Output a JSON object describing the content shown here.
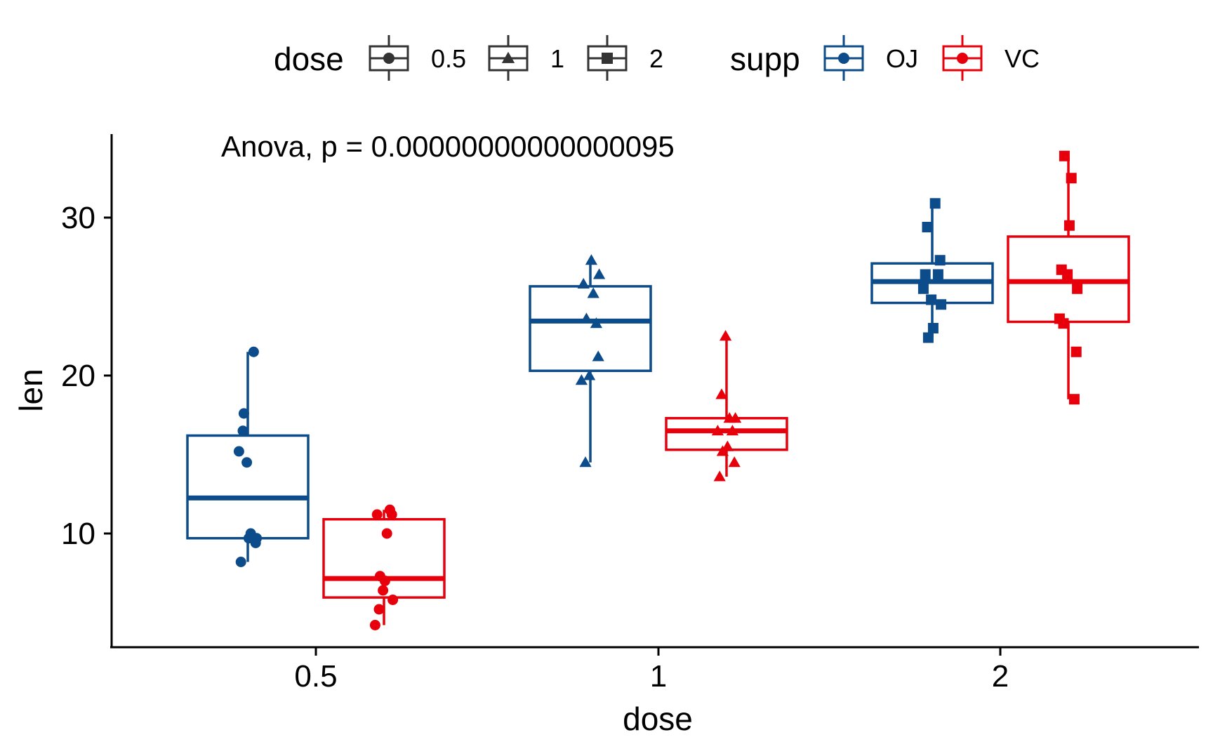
{
  "chart_data": {
    "type": "box",
    "title": "",
    "xlabel": "dose",
    "ylabel": "len",
    "categories": [
      "0.5",
      "1",
      "2"
    ],
    "yticks": [
      10,
      20,
      30
    ],
    "ylim": [
      3,
      35
    ],
    "grid": false,
    "annotation": "Anova, p = 0.00000000000000095",
    "colors": {
      "OJ": "#0C4C8A",
      "VC": "#E7000B"
    },
    "legend": {
      "position": "top",
      "groups": [
        {
          "title": "dose",
          "entries": [
            {
              "label": "0.5",
              "shape": "circle"
            },
            {
              "label": "1",
              "shape": "triangle"
            },
            {
              "label": "2",
              "shape": "square"
            }
          ]
        },
        {
          "title": "supp",
          "entries": [
            {
              "label": "OJ",
              "color": "#0C4C8A"
            },
            {
              "label": "VC",
              "color": "#E7000B"
            }
          ]
        }
      ]
    },
    "series": [
      {
        "name": "OJ",
        "boxes": [
          {
            "dose": "0.5",
            "shape": "circle",
            "min": 8.2,
            "q1": 9.7,
            "median": 12.25,
            "q3": 16.2,
            "max": 21.5,
            "points": [
              15.2,
              21.5,
              17.6,
              9.7,
              14.5,
              10.0,
              8.2,
              9.4,
              16.5,
              9.7
            ]
          },
          {
            "dose": "1",
            "shape": "triangle",
            "min": 14.5,
            "q1": 20.3,
            "median": 23.45,
            "q3": 25.65,
            "max": 27.3,
            "points": [
              19.7,
              23.3,
              23.6,
              26.4,
              20.0,
              25.2,
              25.8,
              21.2,
              14.5,
              27.3
            ]
          },
          {
            "dose": "2",
            "shape": "square",
            "min": 22.4,
            "q1": 24.6,
            "median": 25.95,
            "q3": 27.1,
            "max": 30.9,
            "points": [
              25.5,
              26.4,
              22.4,
              24.5,
              24.8,
              30.9,
              26.4,
              27.3,
              29.4,
              23.0
            ]
          }
        ]
      },
      {
        "name": "VC",
        "boxes": [
          {
            "dose": "0.5",
            "shape": "circle",
            "min": 4.2,
            "q1": 5.95,
            "median": 7.15,
            "q3": 10.9,
            "max": 11.5,
            "points": [
              4.2,
              11.5,
              7.3,
              5.8,
              6.4,
              10.0,
              11.2,
              11.2,
              5.2,
              7.0
            ]
          },
          {
            "dose": "1",
            "shape": "triangle",
            "min": 13.6,
            "q1": 15.3,
            "median": 16.5,
            "q3": 17.3,
            "max": 22.5,
            "points": [
              16.5,
              16.5,
              15.2,
              17.3,
              22.5,
              17.3,
              13.6,
              14.5,
              18.8,
              15.5
            ]
          },
          {
            "dose": "2",
            "shape": "square",
            "min": 18.5,
            "q1": 23.4,
            "median": 25.95,
            "q3": 28.8,
            "max": 33.9,
            "points": [
              23.6,
              18.5,
              33.9,
              25.5,
              26.4,
              32.5,
              26.7,
              21.5,
              23.3,
              29.5
            ]
          }
        ]
      }
    ]
  }
}
